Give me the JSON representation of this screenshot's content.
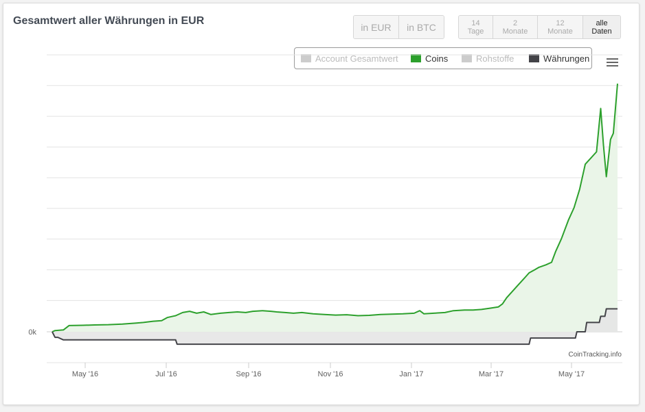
{
  "title": "Gesamtwert aller Währungen in EUR",
  "currency_buttons": [
    {
      "label": "in EUR",
      "active": true
    },
    {
      "label": "in BTC",
      "active": false
    }
  ],
  "range_buttons": [
    {
      "line1": "14",
      "line2": "Tage",
      "active": false
    },
    {
      "line1": "2",
      "line2": "Monate",
      "active": false
    },
    {
      "line1": "12",
      "line2": "Monate",
      "active": false
    },
    {
      "line1": "alle",
      "line2": "Daten",
      "active": true
    }
  ],
  "legend": [
    {
      "label": "Account Gesamtwert",
      "color": "#cccccc",
      "enabled": false
    },
    {
      "label": "Coins",
      "color": "#2ca02c",
      "enabled": true
    },
    {
      "label": "Rohstoffe",
      "color": "#cccccc",
      "enabled": false
    },
    {
      "label": "Währungen",
      "color": "#434348",
      "enabled": true
    }
  ],
  "menu_icon": "hamburger-menu-icon",
  "credit": "CoinTracking.info",
  "chart_data": {
    "type": "area",
    "y_tick_labels": [
      "0k"
    ],
    "x_tick_labels": [
      "May '16",
      "Jul '16",
      "Sep '16",
      "Nov '16",
      "Jan '17",
      "Mar '17",
      "May '17"
    ],
    "grid": true,
    "legend_position": "top-right",
    "series": [
      {
        "name": "Coins",
        "color": "#2ca02c",
        "fill": "#eaf5e8",
        "points": [
          [
            0,
            0
          ],
          [
            2,
            0.2
          ],
          [
            8,
            0.3
          ],
          [
            12,
            1
          ],
          [
            22,
            1.05
          ],
          [
            30,
            1.1
          ],
          [
            40,
            1.15
          ],
          [
            50,
            1.25
          ],
          [
            60,
            1.4
          ],
          [
            65,
            1.5
          ],
          [
            72,
            1.7
          ],
          [
            78,
            1.8
          ],
          [
            82,
            2.3
          ],
          [
            88,
            2.6
          ],
          [
            93,
            3.1
          ],
          [
            98,
            3.3
          ],
          [
            103,
            3.0
          ],
          [
            108,
            3.2
          ],
          [
            113,
            2.8
          ],
          [
            120,
            3.0
          ],
          [
            126,
            3.1
          ],
          [
            132,
            3.2
          ],
          [
            138,
            3.1
          ],
          [
            143,
            3.3
          ],
          [
            150,
            3.4
          ],
          [
            156,
            3.3
          ],
          [
            160,
            3.2
          ],
          [
            166,
            3.1
          ],
          [
            172,
            3.0
          ],
          [
            178,
            3.1
          ],
          [
            186,
            2.9
          ],
          [
            194,
            2.8
          ],
          [
            202,
            2.7
          ],
          [
            210,
            2.75
          ],
          [
            218,
            2.6
          ],
          [
            226,
            2.65
          ],
          [
            234,
            2.8
          ],
          [
            242,
            2.85
          ],
          [
            250,
            2.9
          ],
          [
            258,
            3.0
          ],
          [
            262,
            3.4
          ],
          [
            265,
            2.9
          ],
          [
            272,
            3.0
          ],
          [
            280,
            3.1
          ],
          [
            286,
            3.4
          ],
          [
            294,
            3.5
          ],
          [
            300,
            3.5
          ],
          [
            306,
            3.6
          ],
          [
            312,
            3.8
          ],
          [
            318,
            4.0
          ],
          [
            321,
            4.5
          ],
          [
            324,
            5.5
          ],
          [
            328,
            6.5
          ],
          [
            332,
            7.5
          ],
          [
            336,
            8.5
          ],
          [
            340,
            9.5
          ],
          [
            344,
            10.0
          ],
          [
            347,
            10.4
          ],
          [
            352,
            10.8
          ],
          [
            356,
            11.2
          ],
          [
            359,
            13.0
          ],
          [
            363,
            15.0
          ],
          [
            368,
            18.0
          ],
          [
            372,
            20.0
          ],
          [
            376,
            23.0
          ],
          [
            380,
            27.0
          ],
          [
            384,
            28.0
          ],
          [
            388,
            29.0
          ],
          [
            391,
            36.0
          ],
          [
            393,
            30.0
          ],
          [
            395,
            25.0
          ],
          [
            398,
            31.0
          ],
          [
            400,
            32.0
          ],
          [
            403,
            40.0
          ]
        ]
      },
      {
        "name": "Währungen",
        "color": "#434348",
        "fill": "#e6e6e6",
        "points": [
          [
            0,
            0
          ],
          [
            2,
            -0.9
          ],
          [
            4,
            -0.9
          ],
          [
            8,
            -1.3
          ],
          [
            88,
            -1.3
          ],
          [
            89,
            -2.0
          ],
          [
            340,
            -2.0
          ],
          [
            341,
            -1.0
          ],
          [
            373,
            -1.0
          ],
          [
            374,
            0.0
          ],
          [
            380,
            0.0
          ],
          [
            381,
            1.5
          ],
          [
            390,
            1.5
          ],
          [
            391,
            2.5
          ],
          [
            394,
            2.5
          ],
          [
            395,
            3.7
          ],
          [
            403,
            3.7
          ]
        ]
      }
    ]
  }
}
